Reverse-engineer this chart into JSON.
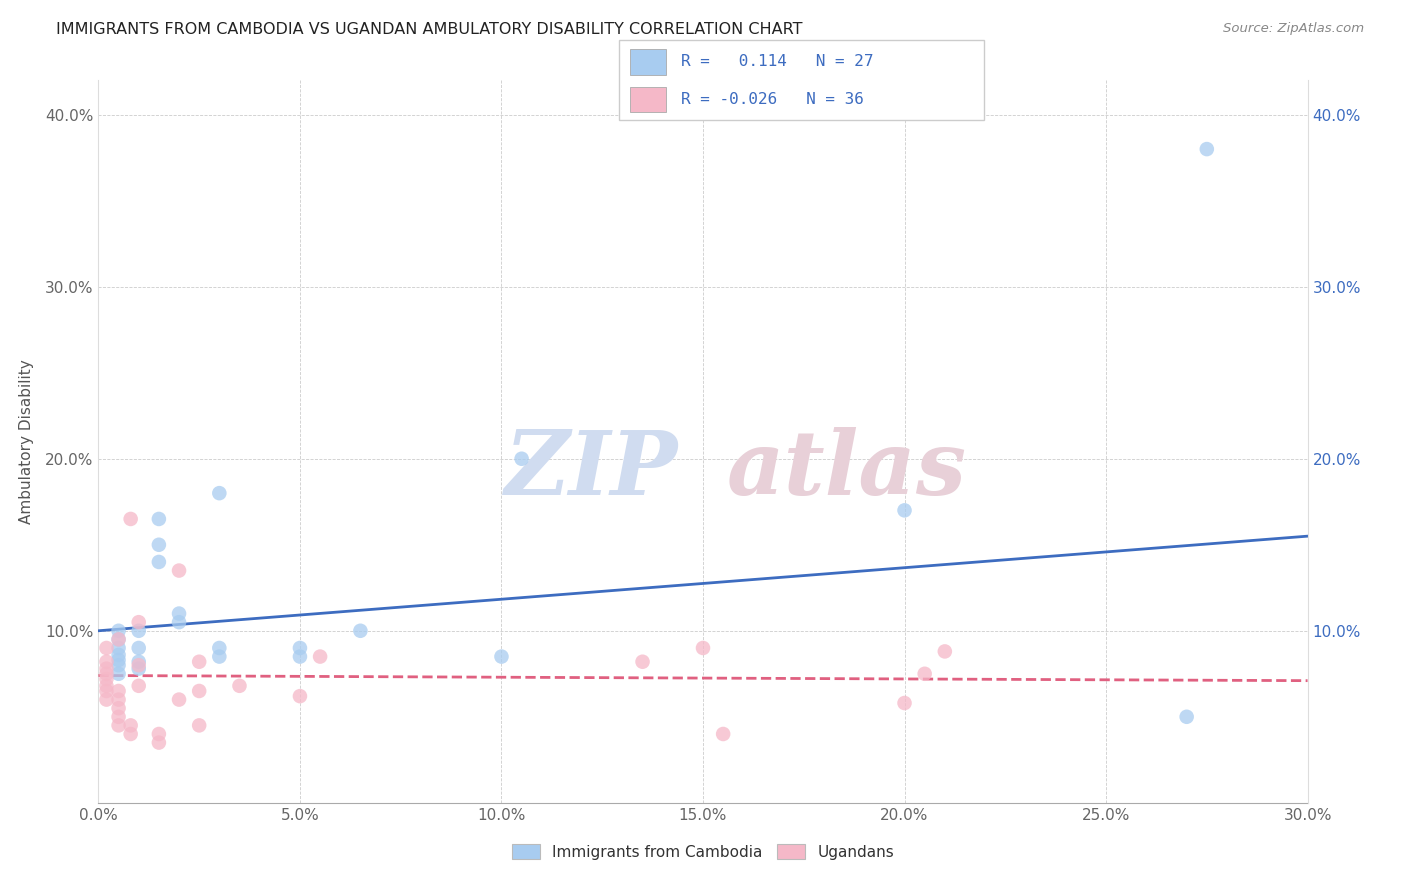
{
  "title": "IMMIGRANTS FROM CAMBODIA VS UGANDAN AMBULATORY DISABILITY CORRELATION CHART",
  "source": "Source: ZipAtlas.com",
  "ylabel": "Ambulatory Disability",
  "xlim": [
    0.0,
    0.3
  ],
  "ylim": [
    0.0,
    0.42
  ],
  "xticks": [
    0.0,
    0.05,
    0.1,
    0.15,
    0.2,
    0.25,
    0.3
  ],
  "yticks": [
    0.0,
    0.1,
    0.2,
    0.3,
    0.4
  ],
  "legend_label1": "Immigrants from Cambodia",
  "legend_label2": "Ugandans",
  "r1": "0.114",
  "n1": "27",
  "r2": "-0.026",
  "n2": "36",
  "blue_color": "#A8CCF0",
  "pink_color": "#F5B8C8",
  "blue_line_color": "#3D6CC0",
  "pink_line_color": "#E06080",
  "watermark_zip": "ZIP",
  "watermark_atlas": "atlas",
  "blue_line_y0": 0.1,
  "blue_line_y1": 0.155,
  "pink_line_y0": 0.074,
  "pink_line_y1": 0.071,
  "blue_scatter_x": [
    0.005,
    0.005,
    0.005,
    0.005,
    0.005,
    0.005,
    0.005,
    0.01,
    0.01,
    0.01,
    0.01,
    0.015,
    0.015,
    0.015,
    0.02,
    0.02,
    0.03,
    0.03,
    0.03,
    0.05,
    0.05,
    0.065,
    0.1,
    0.105,
    0.2,
    0.27,
    0.275
  ],
  "blue_scatter_y": [
    0.075,
    0.08,
    0.083,
    0.086,
    0.09,
    0.095,
    0.1,
    0.078,
    0.082,
    0.09,
    0.1,
    0.165,
    0.15,
    0.14,
    0.105,
    0.11,
    0.085,
    0.09,
    0.18,
    0.085,
    0.09,
    0.1,
    0.085,
    0.2,
    0.17,
    0.05,
    0.38
  ],
  "pink_scatter_x": [
    0.002,
    0.002,
    0.002,
    0.002,
    0.002,
    0.002,
    0.002,
    0.002,
    0.005,
    0.005,
    0.005,
    0.005,
    0.005,
    0.005,
    0.008,
    0.008,
    0.008,
    0.01,
    0.01,
    0.01,
    0.015,
    0.015,
    0.02,
    0.02,
    0.025,
    0.025,
    0.025,
    0.035,
    0.05,
    0.055,
    0.135,
    0.15,
    0.155,
    0.2,
    0.205,
    0.21
  ],
  "pink_scatter_y": [
    0.06,
    0.065,
    0.068,
    0.072,
    0.075,
    0.078,
    0.082,
    0.09,
    0.045,
    0.05,
    0.055,
    0.06,
    0.065,
    0.095,
    0.04,
    0.045,
    0.165,
    0.068,
    0.08,
    0.105,
    0.035,
    0.04,
    0.06,
    0.135,
    0.045,
    0.065,
    0.082,
    0.068,
    0.062,
    0.085,
    0.082,
    0.09,
    0.04,
    0.058,
    0.075,
    0.088
  ]
}
